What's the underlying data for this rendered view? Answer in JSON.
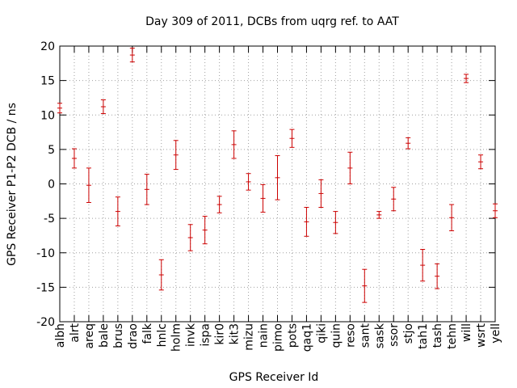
{
  "chart_data": {
    "type": "scatter",
    "title": "Day 309 of 2011, DCBs from uqrg ref. to AAT",
    "xlabel": "GPS Receiver Id",
    "ylabel": "GPS Receiver P1-P2 DCB / ns",
    "ylim": [
      -20,
      20
    ],
    "yticks": [
      20,
      15,
      10,
      5,
      0,
      -5,
      -10,
      -15,
      -20
    ],
    "grid": true,
    "error_bar_color": "#cc0000",
    "categories": [
      "albh",
      "alrt",
      "areq",
      "bale",
      "brus",
      "drao",
      "falk",
      "hnlc",
      "holm",
      "invk",
      "ispa",
      "kir0",
      "kit3",
      "mizu",
      "nain",
      "pimo",
      "pots",
      "qaq1",
      "qiki",
      "quin",
      "reso",
      "sant",
      "sask",
      "ssor",
      "stjo",
      "tah1",
      "tash",
      "tehn",
      "will",
      "wsrt",
      "yell"
    ],
    "series": [
      {
        "values": [
          11.0,
          3.7,
          -0.2,
          11.2,
          -4.0,
          18.7,
          -0.8,
          -13.2,
          4.2,
          -7.8,
          -6.7,
          -3.0,
          5.7,
          0.3,
          -2.1,
          0.9,
          6.6,
          -5.5,
          -1.4,
          -5.6,
          2.3,
          -14.8,
          -4.5,
          -2.2,
          5.9,
          -11.8,
          -13.4,
          -4.9,
          15.3,
          3.2,
          -3.9
        ],
        "errors": [
          0.7,
          1.4,
          2.5,
          1.0,
          2.1,
          1.0,
          2.2,
          2.2,
          2.1,
          1.9,
          2.0,
          1.2,
          2.0,
          1.2,
          2.0,
          3.2,
          1.3,
          2.1,
          2.0,
          1.6,
          2.3,
          2.4,
          0.5,
          1.7,
          0.8,
          2.3,
          1.8,
          1.9,
          0.6,
          1.0,
          1.0
        ]
      }
    ]
  }
}
